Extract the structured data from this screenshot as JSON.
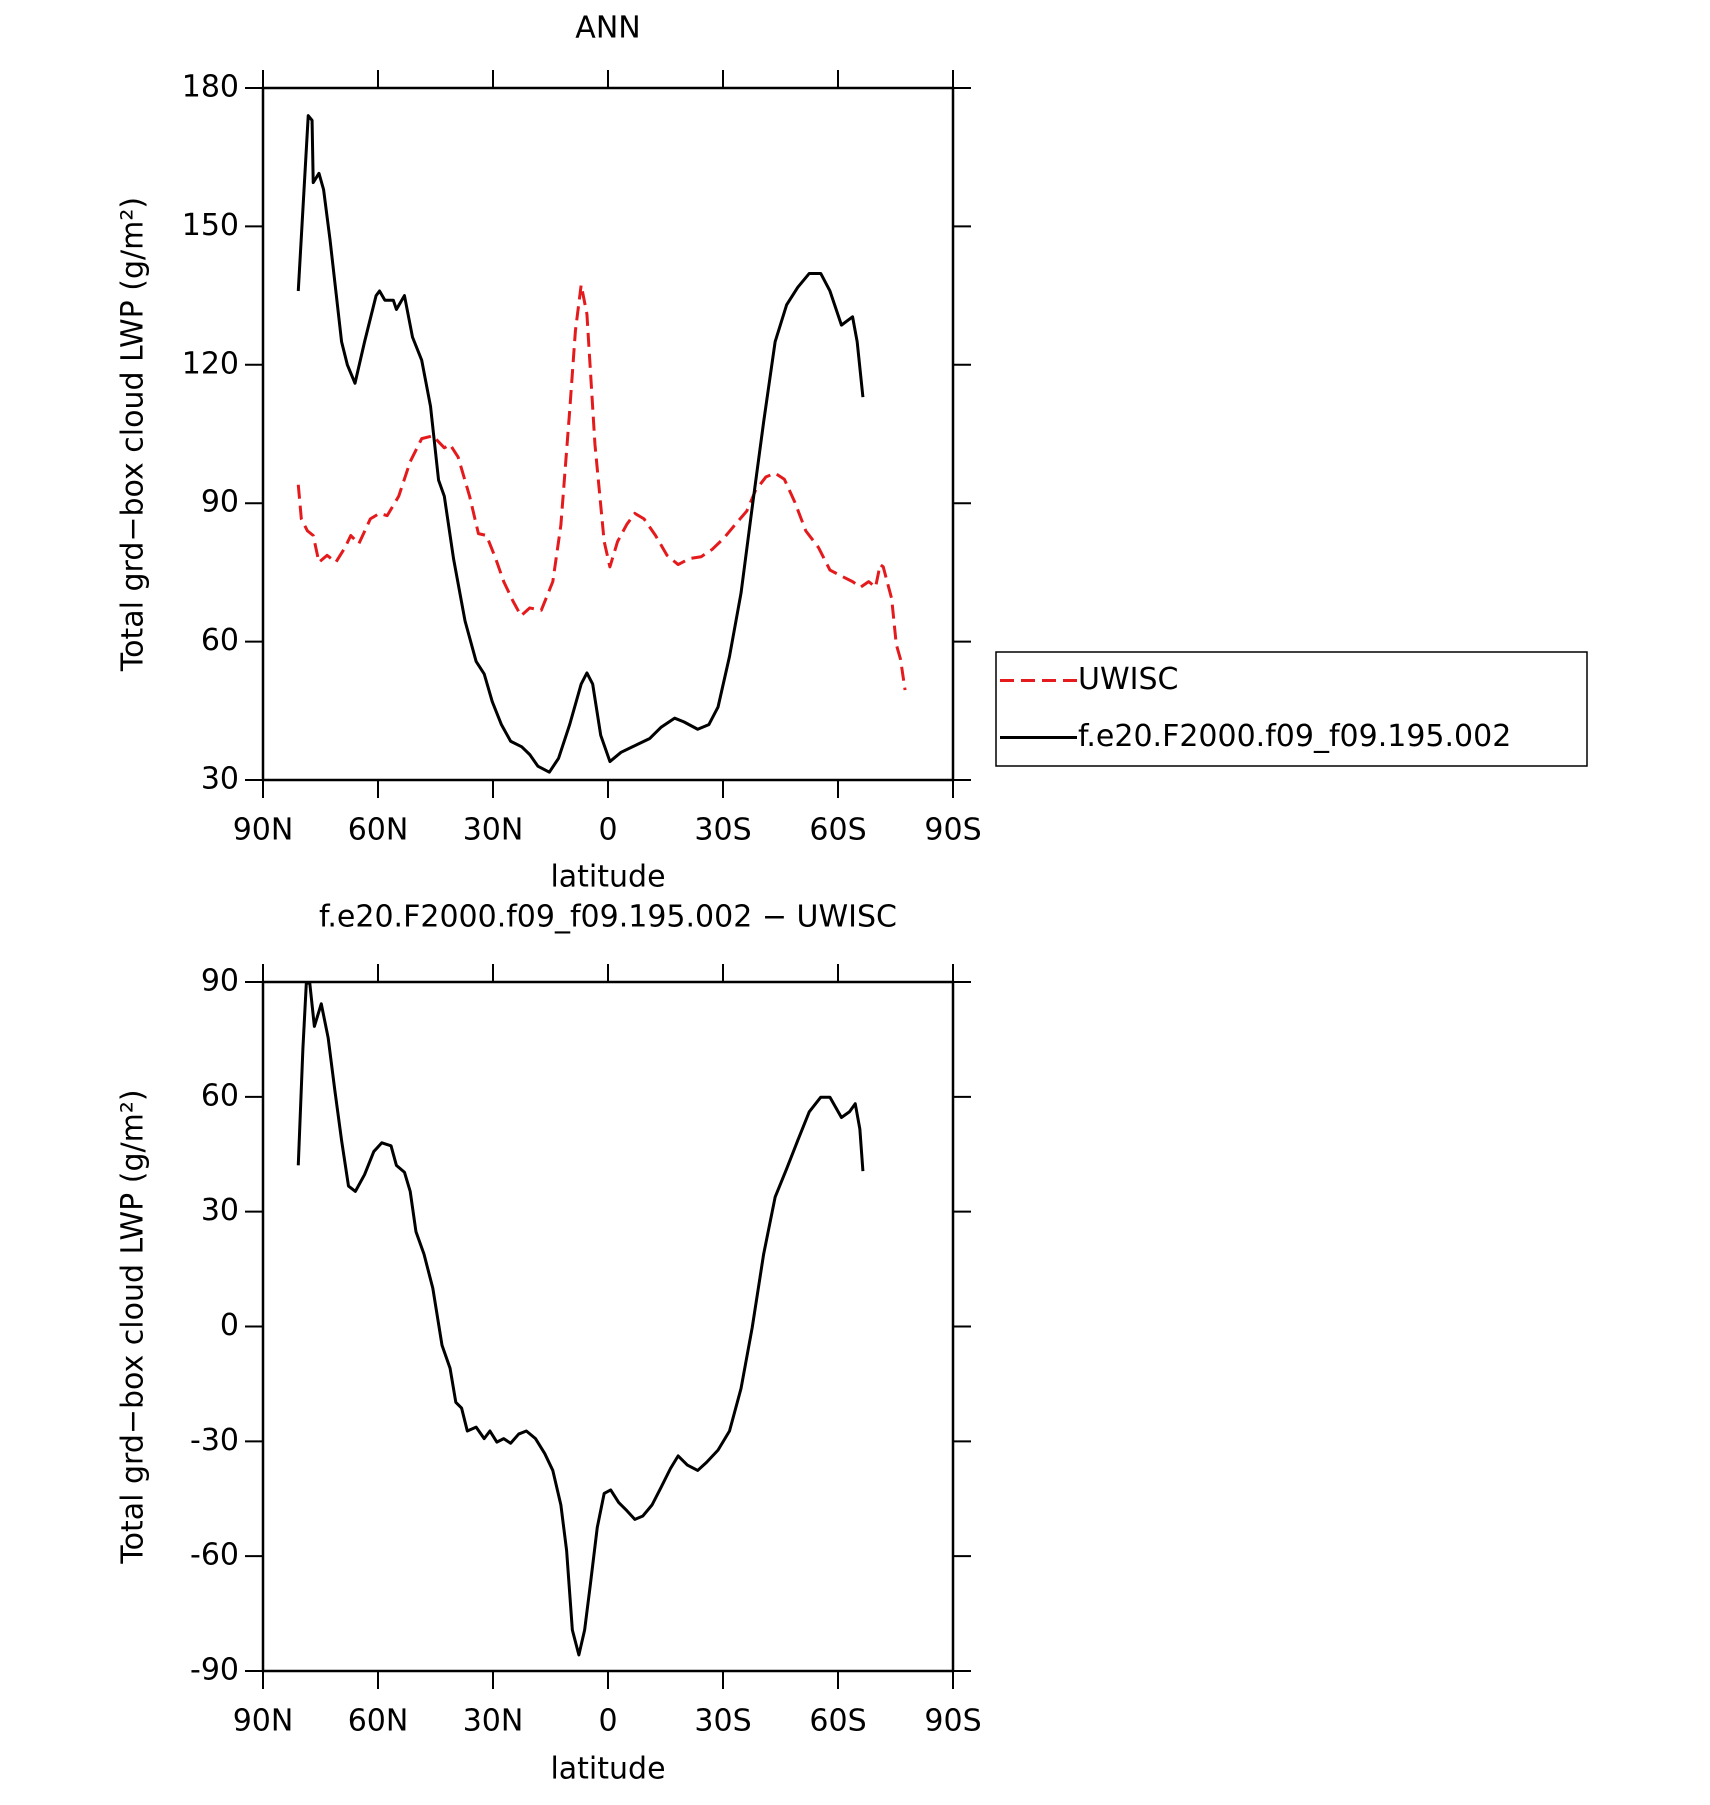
{
  "chart_data": [
    {
      "type": "line",
      "title": "ANN",
      "xlabel": "latitude",
      "ylabel": "Total grd−box cloud LWP (g/m²)",
      "xlim": [
        90,
        -90
      ],
      "xticks": [
        {
          "value": 90,
          "label": "90N"
        },
        {
          "value": 60,
          "label": "60N"
        },
        {
          "value": 30,
          "label": "30N"
        },
        0,
        {
          "value": -30,
          "label": "30S"
        },
        {
          "value": -60,
          "label": "60S"
        },
        {
          "value": -90,
          "label": "90S"
        }
      ],
      "ylim": [
        30,
        180
      ],
      "yticks": [
        30,
        60,
        90,
        120,
        150,
        180
      ],
      "legend": "outside-right",
      "series": [
        {
          "name": "UWISC",
          "color": "#e41a1c",
          "dashed": true,
          "x": [
            80.8,
            80,
            78.4,
            76.9,
            75.4,
            73.3,
            71,
            68.6,
            67.1,
            65,
            62,
            59.6,
            57.6,
            54.6,
            51.6,
            48.6,
            45.7,
            42.7,
            41.2,
            39.1,
            36.1,
            33.8,
            31.7,
            29.3,
            27.2,
            24.8,
            22.7,
            20.4,
            17.4,
            14.4,
            12.3,
            10,
            8.5,
            7,
            5.5,
            3.4,
            1,
            -0.5,
            -2.5,
            -4.9,
            -7,
            -9.4,
            -12.4,
            -15.4,
            -18.3,
            -21.3,
            -24.3,
            -27.2,
            -30.2,
            -33.2,
            -36.2,
            -38.5,
            -41.2,
            -43.6,
            -46,
            -48.7,
            -51.6,
            -54.9,
            -57.9,
            -60.9,
            -63.8,
            -65.9,
            -68,
            -69.8,
            -71,
            -71.8,
            -74,
            -75.2,
            -76.3,
            -77.5
          ],
          "values": [
            94,
            86.6,
            84,
            83,
            77.2,
            78.7,
            77.2,
            80.4,
            83,
            81.2,
            86.6,
            87.8,
            87.3,
            91.5,
            99,
            104,
            104.6,
            102,
            102.7,
            100,
            91.5,
            83.4,
            83,
            78,
            73,
            68.8,
            65.6,
            67.3,
            66.8,
            73,
            85.2,
            110,
            127.4,
            137.3,
            131,
            102.7,
            81.7,
            76.2,
            81.7,
            85.4,
            87.8,
            86.6,
            83,
            78.7,
            76.7,
            78,
            78.4,
            80,
            82.4,
            85.4,
            88.3,
            92.8,
            95.7,
            96.5,
            95.2,
            90.3,
            84,
            80.4,
            75.5,
            74.2,
            73,
            71.8,
            73,
            71.8,
            76.7,
            76.2,
            69.3,
            59.4,
            56.2,
            49.5
          ]
        },
        {
          "name": "f.e20.F2000.f09_f09.195.002",
          "color": "#000000",
          "dashed": false,
          "x": [
            80.8,
            78.2,
            77.2,
            76.9,
            75.4,
            74.2,
            72.5,
            69.5,
            68,
            66,
            63.5,
            60.5,
            59.6,
            58.2,
            56,
            55.2,
            53.1,
            51,
            48.6,
            46.3,
            44.2,
            42.7,
            40.3,
            37.3,
            34.4,
            32.3,
            30.2,
            27.8,
            25.4,
            22.5,
            20.4,
            18.3,
            15.3,
            12.9,
            10,
            7,
            5.5,
            4,
            1.9,
            -0.5,
            -3.4,
            -6.4,
            -10.9,
            -13.8,
            -17.4,
            -19.8,
            -23.4,
            -26.3,
            -28.7,
            -31.7,
            -34.7,
            -37.6,
            -40.6,
            -43.6,
            -46.6,
            -49.5,
            -52.5,
            -55.5,
            -57.9,
            -60.9,
            -63.8,
            -65,
            -66.5
          ],
          "values": [
            136,
            174,
            173,
            159.5,
            161.5,
            158,
            147,
            125,
            120,
            116,
            125,
            135,
            136,
            134,
            134,
            132,
            135,
            126,
            121,
            111,
            95,
            91.5,
            78,
            64.5,
            55.7,
            53,
            47,
            42,
            38.4,
            37.2,
            35.5,
            33,
            31.7,
            34.7,
            42,
            50.8,
            53.2,
            50.8,
            39.7,
            34,
            36,
            37.2,
            39,
            41.4,
            43.4,
            42.6,
            41,
            42,
            45.8,
            56.8,
            70.5,
            89,
            107.6,
            125,
            133,
            136.8,
            139.8,
            139.8,
            136,
            128.6,
            130.4,
            125,
            113
          ]
        }
      ]
    },
    {
      "type": "line",
      "title": "f.e20.F2000.f09_f09.195.002 − UWISC",
      "xlabel": "latitude",
      "ylabel": "Total grd−box cloud LWP (g/m²)",
      "xlim": [
        90,
        -90
      ],
      "xticks": [
        {
          "value": 90,
          "label": "90N"
        },
        {
          "value": 60,
          "label": "60N"
        },
        {
          "value": 30,
          "label": "30N"
        },
        0,
        {
          "value": -30,
          "label": "30S"
        },
        {
          "value": -60,
          "label": "60S"
        },
        {
          "value": -90,
          "label": "90S"
        }
      ],
      "ylim": [
        -90,
        90
      ],
      "yticks": [
        -90,
        -60,
        -30,
        0,
        30,
        60,
        90
      ],
      "series": [
        {
          "color": "#000000",
          "dashed": false,
          "x": [
            80.8,
            79.6,
            78.7,
            77.8,
            76.6,
            74.8,
            73,
            71.3,
            69.5,
            67.7,
            65.9,
            63.5,
            61.1,
            59,
            56.6,
            55.2,
            53.1,
            51.6,
            50.1,
            48,
            45.7,
            43.3,
            41.2,
            39.7,
            38.2,
            36.7,
            34.4,
            32.3,
            30.8,
            29,
            27.2,
            25.4,
            23.3,
            21.3,
            18.9,
            16.5,
            14.4,
            12.3,
            10.8,
            9.3,
            7.6,
            6.1,
            4.6,
            2.8,
            1,
            -0.7,
            -2.8,
            -4.9,
            -7,
            -9.1,
            -11.5,
            -13.8,
            -16.3,
            -18.3,
            -20.7,
            -23.4,
            -25.7,
            -28.7,
            -31.7,
            -34.7,
            -37.6,
            -40.6,
            -43.6,
            -46.6,
            -49.5,
            -52.5,
            -55.5,
            -57.9,
            -60.9,
            -63,
            -64.5,
            -65.7,
            -66.5
          ],
          "values": [
            42.1,
            72.4,
            89.7,
            89.7,
            78.4,
            84.3,
            75.4,
            62,
            48.6,
            36.7,
            35.3,
            39.7,
            45.7,
            48,
            47.2,
            42.1,
            40.3,
            35.3,
            24.8,
            18.9,
            10,
            -4.9,
            -10.9,
            -19.8,
            -21.3,
            -27.3,
            -26.3,
            -29.3,
            -27.3,
            -30.2,
            -29.3,
            -30.5,
            -28.1,
            -27.3,
            -29.3,
            -33.2,
            -37.6,
            -46.6,
            -58.5,
            -79.3,
            -85.8,
            -79.3,
            -67.4,
            -52.5,
            -43.6,
            -42.7,
            -46,
            -48.1,
            -50.4,
            -49.5,
            -46.6,
            -42.1,
            -37.1,
            -33.8,
            -36.2,
            -37.6,
            -35.5,
            -32.3,
            -27.3,
            -16.2,
            -0.4,
            18.9,
            33.8,
            41.2,
            48.6,
            56.1,
            59.9,
            59.9,
            54.6,
            56.1,
            58.2,
            51.6,
            40.6
          ]
        }
      ]
    }
  ]
}
